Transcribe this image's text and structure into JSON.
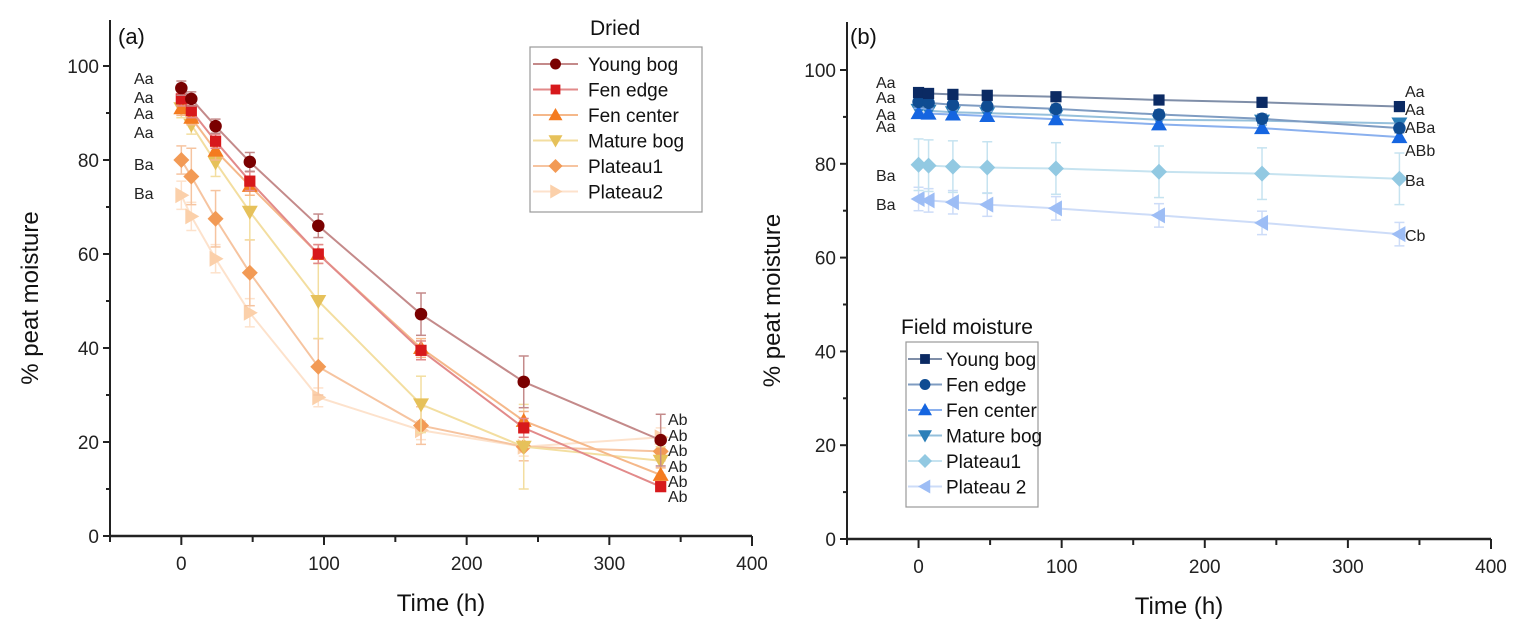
{
  "chart_data": [
    {
      "type": "line",
      "panel_label": "(a)",
      "title": "",
      "xlabel": "Time (h)",
      "ylabel": "% peat moisture",
      "xlim": [
        -50,
        400
      ],
      "ylim": [
        0,
        110
      ],
      "xticks": [
        0,
        100,
        200,
        300,
        400
      ],
      "yticks": [
        0,
        20,
        40,
        60,
        80,
        100
      ],
      "grid": false,
      "legend": {
        "title": "Dried",
        "placement": "top-right"
      },
      "x": [
        0,
        7,
        24,
        48,
        96,
        168,
        240,
        336
      ],
      "series": [
        {
          "name": "Young bog",
          "marker": "circle",
          "color": "#7a0000",
          "line_color": "#c48a8a",
          "values": [
            95.3,
            93,
            87.2,
            79.6,
            66,
            47.2,
            32.8,
            20.4
          ],
          "error": [
            1.5,
            1.5,
            1.5,
            2,
            2.5,
            4.5,
            5.5,
            5.5
          ]
        },
        {
          "name": "Fen edge",
          "marker": "square",
          "color": "#d7191c",
          "line_color": "#e28a8a",
          "values": [
            93,
            90.5,
            84,
            75.5,
            60,
            39.5,
            23,
            10.5
          ],
          "error": [
            1.5,
            1.5,
            1.5,
            2,
            2,
            2,
            2,
            1
          ]
        },
        {
          "name": "Fen center",
          "marker": "triangle-up",
          "color": "#f47b20",
          "line_color": "#f5b88a",
          "values": [
            91,
            89,
            82,
            74.5,
            60,
            40,
            24.5,
            13
          ],
          "error": [
            1.5,
            1.5,
            2,
            2,
            2,
            2,
            2,
            1.5
          ]
        },
        {
          "name": "Mature bog",
          "marker": "triangle-down",
          "color": "#e6c15a",
          "line_color": "#f3dea0",
          "values": [
            91,
            87.5,
            79.5,
            69,
            50,
            28,
            19,
            16
          ],
          "error": [
            2,
            2,
            3,
            6,
            8,
            6,
            9,
            3
          ]
        },
        {
          "name": "Plateau1",
          "marker": "diamond",
          "color": "#f29a55",
          "line_color": "#f6c4a0",
          "values": [
            80,
            76.5,
            67.5,
            56,
            36,
            23.5,
            19,
            18
          ],
          "error": [
            3,
            6,
            6,
            7,
            6,
            4,
            3,
            2
          ]
        },
        {
          "name": "Plateau2",
          "marker": "triangle-right",
          "color": "#fbd0aa",
          "line_color": "#fde2cc",
          "values": [
            72.5,
            68,
            59,
            47.5,
            29.5,
            22.5,
            19,
            21
          ],
          "error": [
            3,
            3,
            3,
            3,
            2,
            2,
            2,
            2
          ]
        }
      ],
      "annotations_left": [
        "Aa",
        "Aa",
        "Aa",
        "Aa",
        "Ba",
        "Ba"
      ],
      "annotations_right": [
        "Ab",
        "Ab",
        "Ab",
        "Ab",
        "Ab",
        "Ab"
      ]
    },
    {
      "type": "line",
      "panel_label": "(b)",
      "title": "",
      "xlabel": "Time (h)",
      "ylabel": "% peat moisture",
      "xlim": [
        -50,
        400
      ],
      "ylim": [
        0,
        110
      ],
      "xticks": [
        0,
        100,
        200,
        300,
        400
      ],
      "yticks": [
        0,
        20,
        40,
        60,
        80,
        100
      ],
      "grid": false,
      "legend": {
        "title": "Field moisture",
        "placement": "bottom-left"
      },
      "x": [
        0,
        7,
        24,
        48,
        96,
        168,
        240,
        336
      ],
      "series": [
        {
          "name": "Young bog",
          "marker": "square",
          "color": "#0b2a63",
          "line_color": "#7f8ea8",
          "values": [
            95.2,
            95,
            94.8,
            94.6,
            94.3,
            93.6,
            93.1,
            92.2
          ],
          "error": [
            0.5,
            0.5,
            0.5,
            0.5,
            0.5,
            0.5,
            0.5,
            0.5
          ]
        },
        {
          "name": "Fen edge",
          "marker": "circle",
          "color": "#0f4c92",
          "line_color": "#7f9cc2",
          "values": [
            93.2,
            93,
            92.6,
            92.3,
            91.7,
            90.5,
            89.6,
            87.6
          ],
          "error": [
            1,
            1,
            1,
            1,
            1,
            1,
            1,
            1
          ]
        },
        {
          "name": "Fen center",
          "marker": "triangle-up",
          "color": "#1565e0",
          "line_color": "#8ab0ee",
          "values": [
            90.8,
            90.7,
            90.5,
            90.2,
            89.5,
            88.4,
            87.6,
            85.7
          ],
          "error": [
            1,
            1,
            1,
            1,
            1,
            1,
            1,
            1
          ]
        },
        {
          "name": "Mature bog",
          "marker": "triangle-down",
          "color": "#2b7fb8",
          "line_color": "#95c0dc",
          "values": [
            91.5,
            91.3,
            91,
            90.8,
            90.4,
            89.4,
            89.2,
            88.6
          ],
          "error": [
            1,
            1,
            1,
            1,
            1,
            1,
            1,
            1
          ]
        },
        {
          "name": "Plateau1",
          "marker": "diamond",
          "color": "#92c9e2",
          "line_color": "#c6e3f0",
          "values": [
            79.8,
            79.6,
            79.4,
            79.2,
            79,
            78.3,
            77.9,
            76.8
          ],
          "error": [
            5.5,
            5.5,
            5.5,
            5.5,
            5.5,
            5.5,
            5.5,
            5.5
          ]
        },
        {
          "name": "Plateau 2",
          "marker": "triangle-left",
          "color": "#9dbdf5",
          "line_color": "#cddcf8",
          "values": [
            72.5,
            72.2,
            71.8,
            71.3,
            70.5,
            69,
            67.4,
            65
          ],
          "error": [
            2.5,
            2.5,
            2.5,
            2.5,
            2.5,
            2.5,
            2.5,
            2.5
          ]
        }
      ],
      "annotations_left": [
        "Aa",
        "Aa",
        "Aa",
        "Aa",
        "Ba",
        "Ba"
      ],
      "annotations_right": [
        "Aa",
        "Aa",
        "ABa",
        "ABb",
        "Ba",
        "Cb"
      ]
    }
  ]
}
